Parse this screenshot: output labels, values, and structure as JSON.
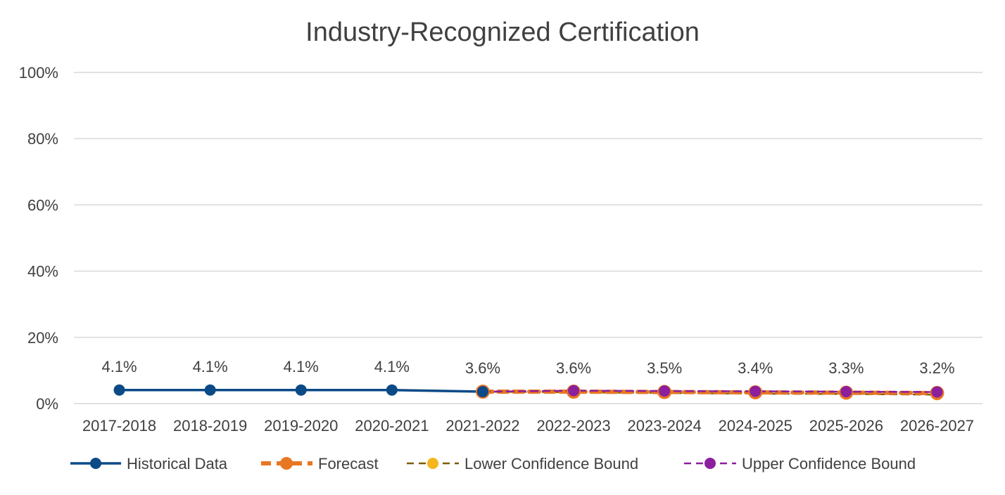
{
  "chart_data": {
    "type": "line",
    "title": "Industry-Recognized Certification",
    "xlabel": "",
    "ylabel": "",
    "categories": [
      "2017-2018",
      "2018-2019",
      "2019-2020",
      "2020-2021",
      "2021-2022",
      "2022-2023",
      "2023-2024",
      "2024-2025",
      "2025-2026",
      "2026-2027"
    ],
    "ylim": [
      0,
      100
    ],
    "yticks": [
      0,
      20,
      40,
      60,
      80,
      100
    ],
    "ytick_labels": [
      "0%",
      "20%",
      "40%",
      "60%",
      "80%",
      "100%"
    ],
    "grid": true,
    "legend_position": "bottom",
    "series": [
      {
        "name": "Historical Data",
        "color": "#0B4A87",
        "style": "solid-marker",
        "values": [
          4.1,
          4.1,
          4.1,
          4.1,
          3.6,
          null,
          null,
          null,
          null,
          null
        ]
      },
      {
        "name": "Forecast",
        "color": "#E87722",
        "style": "dashed-thick-marker",
        "values": [
          null,
          null,
          null,
          null,
          3.6,
          3.6,
          3.5,
          3.4,
          3.3,
          3.2
        ]
      },
      {
        "name": "Lower Confidence Bound",
        "color": "#7F5A00",
        "marker_color": "#F5B51C",
        "style": "dashed-marker",
        "values": [
          null,
          null,
          null,
          null,
          3.6,
          3.4,
          3.2,
          3.0,
          2.9,
          2.7
        ]
      },
      {
        "name": "Upper Confidence Bound",
        "color": "#8B1F9E",
        "style": "dashed-marker",
        "values": [
          null,
          null,
          null,
          null,
          3.6,
          3.9,
          3.8,
          3.7,
          3.6,
          3.5
        ]
      }
    ],
    "data_labels": [
      "4.1%",
      "4.1%",
      "4.1%",
      "4.1%",
      "3.6%",
      "3.6%",
      "3.5%",
      "3.4%",
      "3.3%",
      "3.2%"
    ]
  }
}
